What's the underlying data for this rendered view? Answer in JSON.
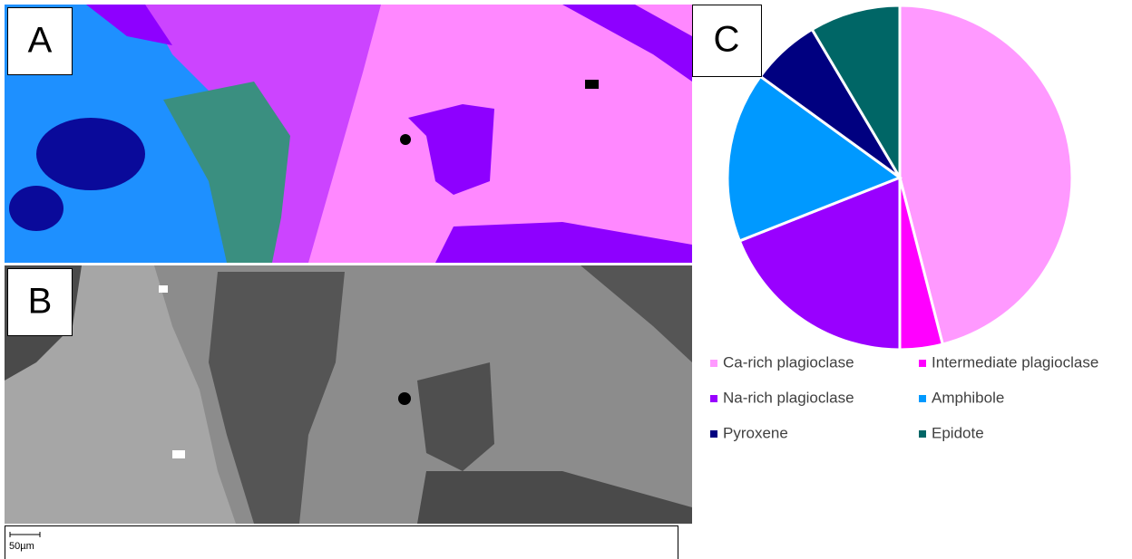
{
  "panels": {
    "a": "A",
    "b": "B",
    "c": "C"
  },
  "scale_bar": "50µm",
  "chart_data": {
    "type": "pie",
    "categories": [
      "Ca-rich plagioclase",
      "Intermediate plagioclase",
      "Na-rich plagioclase",
      "Amphibole",
      "Pyroxene",
      "Epidote"
    ],
    "values": [
      46,
      4,
      19,
      16,
      6.5,
      8.5
    ],
    "colors": [
      "#ff99ff",
      "#ff00ff",
      "#9900ff",
      "#0099ff",
      "#000080",
      "#006666"
    ]
  }
}
